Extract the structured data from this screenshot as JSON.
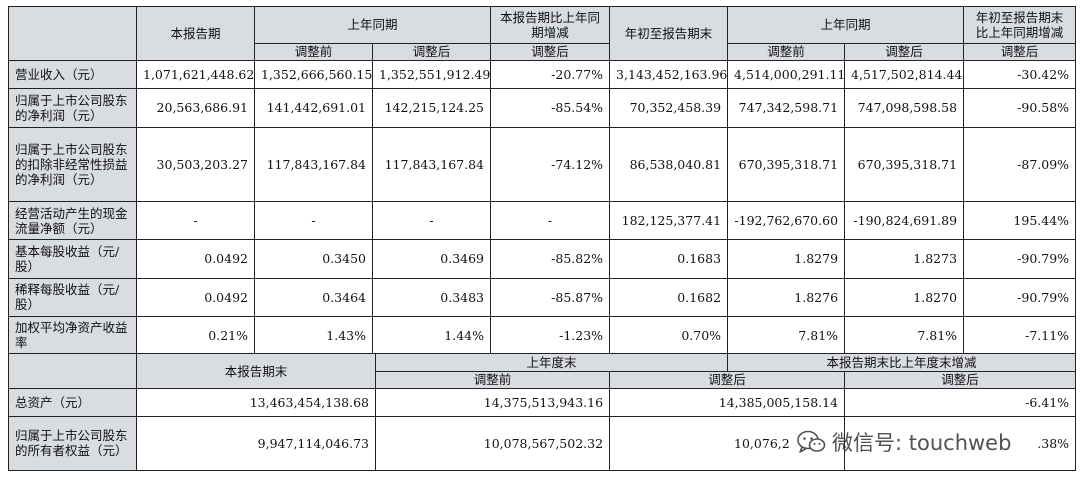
{
  "header": {
    "report_period": "本报告期",
    "prev_period": "上年同期",
    "yoy_change": "本报告期比上年同期增减",
    "ytd_end": "年初至报告期末",
    "prev_period2": "上年同期",
    "ytd_yoy_change": "年初至报告期末比上年同期增减",
    "before_adj": "调整前",
    "after_adj": "调整后"
  },
  "rows": [
    {
      "label": "营业收入（元）",
      "v1": "1,071,621,448.62",
      "v2": "1,352,666,560.15",
      "v3": "1,352,551,912.49",
      "v4": "-20.77%",
      "v5": "3,143,452,163.96",
      "v6": "4,514,000,291.11",
      "v7": "4,517,502,814.44",
      "v8": "-30.42%"
    },
    {
      "label": "归属于上市公司股东的净利润（元）",
      "v1": "20,563,686.91",
      "v2": "141,442,691.01",
      "v3": "142,215,124.25",
      "v4": "-85.54%",
      "v5": "70,352,458.39",
      "v6": "747,342,598.71",
      "v7": "747,098,598.58",
      "v8": "-90.58%"
    },
    {
      "label": "归属于上市公司股东的扣除非经常性损益的净利润（元）",
      "v1": "30,503,203.27",
      "v2": "117,843,167.84",
      "v3": "117,843,167.84",
      "v4": "-74.12%",
      "v5": "86,538,040.81",
      "v6": "670,395,318.71",
      "v7": "670,395,318.71",
      "v8": "-87.09%"
    },
    {
      "label": "经营活动产生的现金流量净额（元）",
      "v1": "-",
      "v2": "-",
      "v3": "-",
      "v4": "-",
      "v5": "182,125,377.41",
      "v6": "-192,762,670.60",
      "v7": "-190,824,691.89",
      "v8": "195.44%"
    },
    {
      "label": "基本每股收益（元/股）",
      "v1": "0.0492",
      "v2": "0.3450",
      "v3": "0.3469",
      "v4": "-85.82%",
      "v5": "0.1683",
      "v6": "1.8279",
      "v7": "1.8273",
      "v8": "-90.79%"
    },
    {
      "label": "稀释每股收益（元/股）",
      "v1": "0.0492",
      "v2": "0.3464",
      "v3": "0.3483",
      "v4": "-85.87%",
      "v5": "0.1682",
      "v6": "1.8276",
      "v7": "1.8270",
      "v8": "-90.79%"
    },
    {
      "label": "加权平均净资产收益率",
      "v1": "0.21%",
      "v2": "1.43%",
      "v3": "1.44%",
      "v4": "-1.23%",
      "v5": "0.70%",
      "v6": "7.81%",
      "v7": "7.81%",
      "v8": "-7.11%"
    }
  ],
  "header2": {
    "period_end": "本报告期末",
    "prev_year_end": "上年度末",
    "change": "本报告期末比上年度末增减",
    "before_adj": "调整前",
    "after_adj": "调整后",
    "after_adj2": "调整后"
  },
  "rows2": [
    {
      "label": "总资产（元）",
      "v1": "13,463,454,138.68",
      "v2": "14,375,513,943.16",
      "v3": "14,385,005,158.14",
      "v4": "-6.41%"
    },
    {
      "label": "归属于上市公司股东的所有者权益（元）",
      "v1": "9,947,114,046.73",
      "v2": "10,078,567,502.32",
      "v3": "10,076,2",
      "v4": ".38%"
    }
  ],
  "watermark": {
    "text": "微信号: touchweb",
    "icon": "wechat-icon"
  }
}
